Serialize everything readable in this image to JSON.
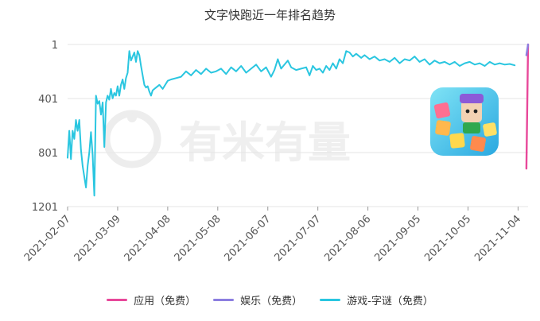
{
  "chart_data": {
    "type": "line",
    "title": "文字快跑近一年排名趋势",
    "y_reversed": true,
    "yticks": [
      1,
      401,
      801,
      1201
    ],
    "ylim": [
      1,
      1201
    ],
    "x_ticks": [
      "2021-02-07",
      "2021-03-09",
      "2021-04-08",
      "2021-05-08",
      "2021-06-07",
      "2021-07-07",
      "2021-08-06",
      "2021-09-05",
      "2021-10-05",
      "2021-11-04"
    ],
    "x_start": "2021-02-07",
    "x_end": "2021-11-10",
    "watermark": "有米有量",
    "grid": true,
    "legend_position": "bottom",
    "series": [
      {
        "name": "应用（免费）",
        "color": "#e8489a",
        "points": [
          [
            "2021-11-09",
            920
          ],
          [
            "2021-11-10",
            1
          ]
        ]
      },
      {
        "name": "娱乐（免费）",
        "color": "#8c7ee0",
        "points": [
          [
            "2021-11-09",
            80
          ],
          [
            "2021-11-10",
            1
          ]
        ]
      },
      {
        "name": "游戏-字谜（免费）",
        "color": "#2ac6e0",
        "points": [
          [
            "2021-02-07",
            840
          ],
          [
            "2021-02-08",
            640
          ],
          [
            "2021-02-09",
            850
          ],
          [
            "2021-02-10",
            640
          ],
          [
            "2021-02-11",
            700
          ],
          [
            "2021-02-12",
            560
          ],
          [
            "2021-02-13",
            640
          ],
          [
            "2021-02-14",
            560
          ],
          [
            "2021-02-15",
            780
          ],
          [
            "2021-02-16",
            900
          ],
          [
            "2021-02-17",
            980
          ],
          [
            "2021-02-18",
            1060
          ],
          [
            "2021-02-19",
            900
          ],
          [
            "2021-02-20",
            800
          ],
          [
            "2021-02-21",
            650
          ],
          [
            "2021-02-22",
            820
          ],
          [
            "2021-02-23",
            1120
          ],
          [
            "2021-02-24",
            380
          ],
          [
            "2021-02-25",
            440
          ],
          [
            "2021-02-26",
            420
          ],
          [
            "2021-02-27",
            520
          ],
          [
            "2021-02-28",
            430
          ],
          [
            "2021-03-01",
            760
          ],
          [
            "2021-03-02",
            430
          ],
          [
            "2021-03-03",
            380
          ],
          [
            "2021-03-04",
            410
          ],
          [
            "2021-03-05",
            330
          ],
          [
            "2021-03-06",
            400
          ],
          [
            "2021-03-07",
            360
          ],
          [
            "2021-03-08",
            380
          ],
          [
            "2021-03-09",
            310
          ],
          [
            "2021-03-10",
            380
          ],
          [
            "2021-03-11",
            300
          ],
          [
            "2021-03-12",
            260
          ],
          [
            "2021-03-13",
            330
          ],
          [
            "2021-03-14",
            250
          ],
          [
            "2021-03-15",
            210
          ],
          [
            "2021-03-16",
            50
          ],
          [
            "2021-03-17",
            120
          ],
          [
            "2021-03-18",
            90
          ],
          [
            "2021-03-19",
            60
          ],
          [
            "2021-03-20",
            130
          ],
          [
            "2021-03-21",
            50
          ],
          [
            "2021-03-22",
            80
          ],
          [
            "2021-03-23",
            160
          ],
          [
            "2021-03-24",
            230
          ],
          [
            "2021-03-25",
            300
          ],
          [
            "2021-03-26",
            320
          ],
          [
            "2021-03-27",
            310
          ],
          [
            "2021-03-28",
            350
          ],
          [
            "2021-03-29",
            380
          ],
          [
            "2021-03-30",
            340
          ],
          [
            "2021-04-01",
            320
          ],
          [
            "2021-04-03",
            300
          ],
          [
            "2021-04-05",
            330
          ],
          [
            "2021-04-08",
            270
          ],
          [
            "2021-04-10",
            260
          ],
          [
            "2021-04-13",
            250
          ],
          [
            "2021-04-16",
            240
          ],
          [
            "2021-04-19",
            200
          ],
          [
            "2021-04-22",
            230
          ],
          [
            "2021-04-25",
            190
          ],
          [
            "2021-04-28",
            220
          ],
          [
            "2021-05-01",
            180
          ],
          [
            "2021-05-04",
            210
          ],
          [
            "2021-05-07",
            200
          ],
          [
            "2021-05-10",
            180
          ],
          [
            "2021-05-13",
            220
          ],
          [
            "2021-05-16",
            170
          ],
          [
            "2021-05-19",
            200
          ],
          [
            "2021-05-22",
            160
          ],
          [
            "2021-05-25",
            210
          ],
          [
            "2021-05-28",
            180
          ],
          [
            "2021-05-31",
            150
          ],
          [
            "2021-06-03",
            200
          ],
          [
            "2021-06-06",
            170
          ],
          [
            "2021-06-09",
            240
          ],
          [
            "2021-06-11",
            190
          ],
          [
            "2021-06-13",
            110
          ],
          [
            "2021-06-15",
            180
          ],
          [
            "2021-06-17",
            150
          ],
          [
            "2021-06-19",
            120
          ],
          [
            "2021-06-21",
            170
          ],
          [
            "2021-06-24",
            190
          ],
          [
            "2021-06-27",
            180
          ],
          [
            "2021-06-30",
            170
          ],
          [
            "2021-07-02",
            230
          ],
          [
            "2021-07-04",
            160
          ],
          [
            "2021-07-06",
            190
          ],
          [
            "2021-07-08",
            180
          ],
          [
            "2021-07-10",
            210
          ],
          [
            "2021-07-12",
            160
          ],
          [
            "2021-07-14",
            190
          ],
          [
            "2021-07-16",
            140
          ],
          [
            "2021-07-18",
            180
          ],
          [
            "2021-07-20",
            110
          ],
          [
            "2021-07-22",
            140
          ],
          [
            "2021-07-24",
            50
          ],
          [
            "2021-07-26",
            60
          ],
          [
            "2021-07-28",
            90
          ],
          [
            "2021-07-30",
            70
          ],
          [
            "2021-08-02",
            100
          ],
          [
            "2021-08-04",
            80
          ],
          [
            "2021-08-07",
            110
          ],
          [
            "2021-08-10",
            90
          ],
          [
            "2021-08-13",
            120
          ],
          [
            "2021-08-16",
            110
          ],
          [
            "2021-08-19",
            130
          ],
          [
            "2021-08-22",
            100
          ],
          [
            "2021-08-25",
            140
          ],
          [
            "2021-08-28",
            110
          ],
          [
            "2021-08-31",
            120
          ],
          [
            "2021-09-03",
            90
          ],
          [
            "2021-09-06",
            130
          ],
          [
            "2021-09-09",
            110
          ],
          [
            "2021-09-12",
            150
          ],
          [
            "2021-09-15",
            120
          ],
          [
            "2021-09-18",
            140
          ],
          [
            "2021-09-21",
            130
          ],
          [
            "2021-09-24",
            150
          ],
          [
            "2021-09-27",
            130
          ],
          [
            "2021-09-30",
            160
          ],
          [
            "2021-10-03",
            140
          ],
          [
            "2021-10-06",
            130
          ],
          [
            "2021-10-09",
            150
          ],
          [
            "2021-10-12",
            140
          ],
          [
            "2021-10-15",
            160
          ],
          [
            "2021-10-18",
            130
          ],
          [
            "2021-10-21",
            150
          ],
          [
            "2021-10-24",
            140
          ],
          [
            "2021-10-27",
            150
          ],
          [
            "2021-10-30",
            145
          ],
          [
            "2021-11-02",
            155
          ]
        ]
      }
    ]
  }
}
